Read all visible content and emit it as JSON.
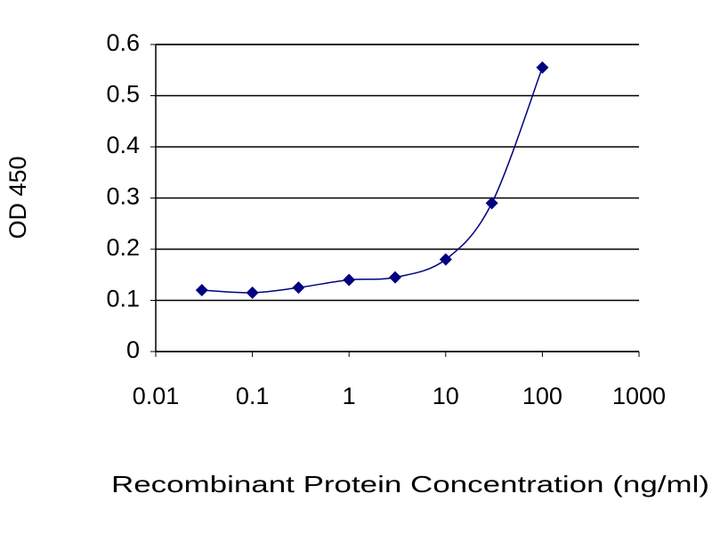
{
  "chart_data": {
    "type": "line",
    "x_label": "Recombinant Protein Concentration (ng/ml)",
    "y_label": "OD 450",
    "x": [
      0.03,
      0.1,
      0.3,
      1,
      3,
      10,
      30,
      100
    ],
    "series": [
      {
        "color": "#000080",
        "values": [
          0.12,
          0.115,
          0.125,
          0.14,
          0.145,
          0.18,
          0.29,
          0.555
        ]
      }
    ],
    "xlim": [
      0.01,
      1000
    ],
    "xticks": [
      0.01,
      0.1,
      1,
      10,
      100,
      1000
    ],
    "xscale": "log",
    "ylim": [
      0,
      0.6
    ],
    "yticks": [
      0,
      0.1,
      0.2,
      0.3,
      0.4,
      0.5,
      0.6
    ],
    "grid": true
  }
}
